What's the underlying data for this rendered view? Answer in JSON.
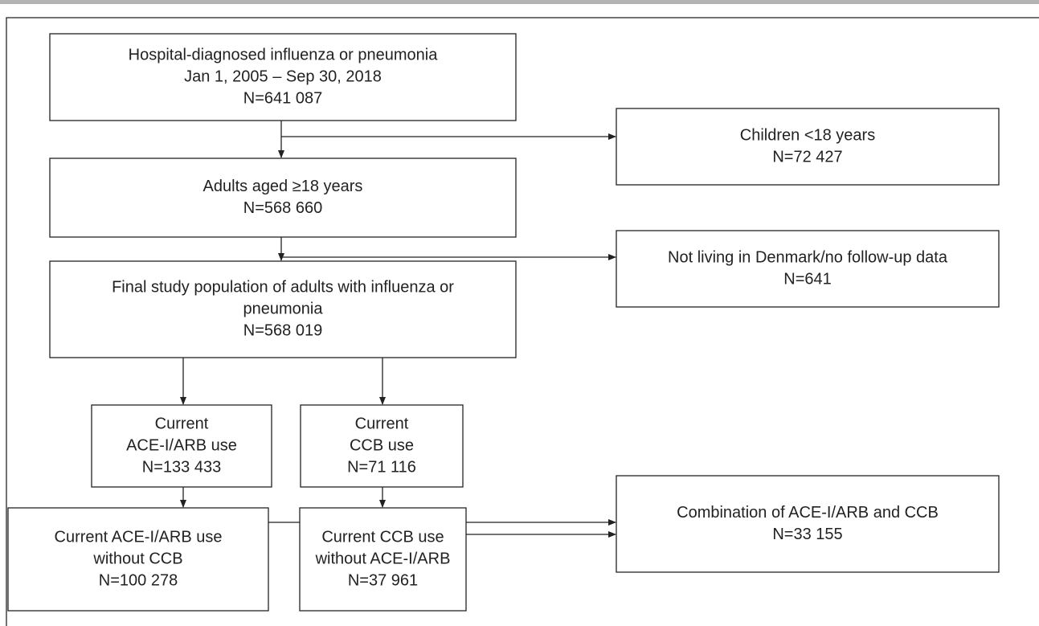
{
  "nodes": [
    {
      "lines": [
        "Hospital-diagnosed influenza or pneumonia",
        "Jan 1, 2005 – Sep 30, 2018",
        "N=641 087"
      ]
    },
    {
      "lines": [
        "Adults aged ≥18 years",
        "N=568 660"
      ]
    },
    {
      "lines": [
        "Final study population of adults with influenza or",
        "pneumonia",
        "N=568 019"
      ]
    },
    {
      "lines": [
        "Current",
        "ACE-I/ARB use",
        "N=133 433"
      ]
    },
    {
      "lines": [
        "Current",
        "CCB use",
        "N=71 116"
      ]
    },
    {
      "lines": [
        "Current ACE-I/ARB use",
        "without CCB",
        "N=100 278"
      ]
    },
    {
      "lines": [
        "Current CCB use",
        "without ACE-I/ARB",
        "N=37 961"
      ]
    },
    {
      "lines": [
        "Children <18 years",
        "N=72 427"
      ]
    },
    {
      "lines": [
        "Not living in Denmark/no follow-up data",
        "N=641"
      ]
    },
    {
      "lines": [
        "Combination of ACE-I/ARB and CCB",
        "N=33 155"
      ]
    }
  ]
}
